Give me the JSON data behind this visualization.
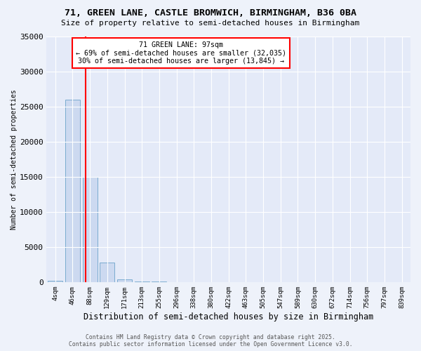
{
  "title": "71, GREEN LANE, CASTLE BROMWICH, BIRMINGHAM, B36 0BA",
  "subtitle": "Size of property relative to semi-detached houses in Birmingham",
  "xlabel": "Distribution of semi-detached houses by size in Birmingham",
  "ylabel": "Number of semi-detached properties",
  "categories": [
    "4sqm",
    "46sqm",
    "88sqm",
    "129sqm",
    "171sqm",
    "213sqm",
    "255sqm",
    "296sqm",
    "338sqm",
    "380sqm",
    "422sqm",
    "463sqm",
    "505sqm",
    "547sqm",
    "589sqm",
    "630sqm",
    "672sqm",
    "714sqm",
    "756sqm",
    "797sqm",
    "839sqm"
  ],
  "values": [
    150,
    26000,
    15000,
    2800,
    400,
    120,
    60,
    30,
    20,
    15,
    10,
    8,
    6,
    5,
    4,
    3,
    3,
    2,
    2,
    1,
    1
  ],
  "bar_color": "#ccd9f0",
  "bar_edge_color": "#7aabcf",
  "red_line_x": 1.75,
  "annotation_title": "71 GREEN LANE: 97sqm",
  "annotation_line1": "← 69% of semi-detached houses are smaller (32,035)",
  "annotation_line2": "30% of semi-detached houses are larger (13,845) →",
  "ylim": [
    0,
    35000
  ],
  "yticks": [
    0,
    5000,
    10000,
    15000,
    20000,
    25000,
    30000,
    35000
  ],
  "background_color": "#eef2fa",
  "plot_bg_color": "#e4eaf8",
  "grid_color": "#ffffff",
  "footer_line1": "Contains HM Land Registry data © Crown copyright and database right 2025.",
  "footer_line2": "Contains public sector information licensed under the Open Government Licence v3.0."
}
